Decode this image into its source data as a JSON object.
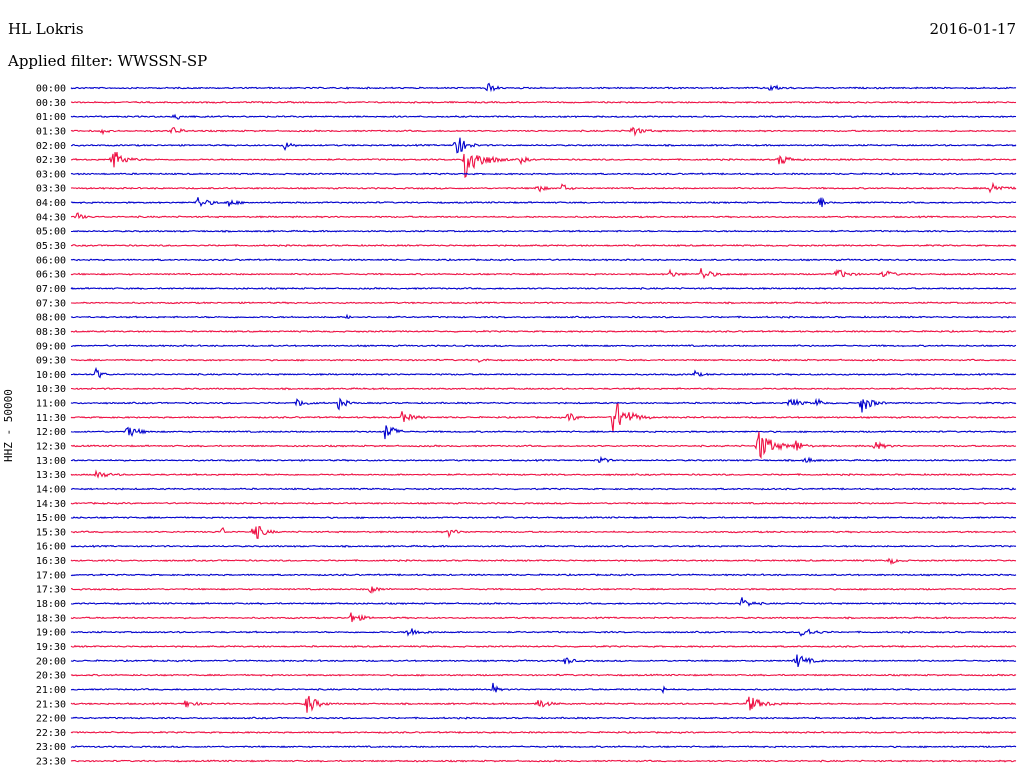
{
  "header": {
    "station": "HL Lokris",
    "date": "2016-01-17",
    "filter": "Applied filter: WWSSN-SP"
  },
  "chart_data": {
    "type": "line",
    "title": "HL Lokris",
    "subtitle": "Applied filter: WWSSN-SP",
    "ylabel": "HHZ - 50000",
    "colors": {
      "even_row": "#0000cc",
      "odd_row": "#ee1144"
    },
    "rows": [
      "00:00",
      "00:30",
      "01:00",
      "01:30",
      "02:00",
      "02:30",
      "03:00",
      "03:30",
      "04:00",
      "04:30",
      "05:00",
      "05:30",
      "06:00",
      "06:30",
      "07:00",
      "07:30",
      "08:00",
      "08:30",
      "09:00",
      "09:30",
      "10:00",
      "10:30",
      "11:00",
      "11:30",
      "12:00",
      "12:30",
      "13:00",
      "13:30",
      "14:00",
      "14:30",
      "15:00",
      "15:30",
      "16:00",
      "16:30",
      "17:00",
      "17:30",
      "18:00",
      "18:30",
      "19:00",
      "19:30",
      "20:00",
      "20:30",
      "21:00",
      "21:30",
      "22:00",
      "22:30",
      "23:00",
      "23:30"
    ],
    "events": [
      {
        "row": 0,
        "minute": 13.2,
        "amp": 1.0,
        "dur": 0.35
      },
      {
        "row": 0,
        "minute": 22.2,
        "amp": 0.5,
        "dur": 0.5
      },
      {
        "row": 2,
        "minute": 3.3,
        "amp": 0.4,
        "dur": 0.6
      },
      {
        "row": 3,
        "minute": 1.0,
        "amp": 0.5,
        "dur": 0.2
      },
      {
        "row": 3,
        "minute": 3.2,
        "amp": 0.6,
        "dur": 0.5
      },
      {
        "row": 3,
        "minute": 17.8,
        "amp": 0.7,
        "dur": 0.6
      },
      {
        "row": 4,
        "minute": 6.8,
        "amp": 0.6,
        "dur": 0.4
      },
      {
        "row": 4,
        "minute": 12.2,
        "amp": 2.0,
        "dur": 0.5
      },
      {
        "row": 5,
        "minute": 1.3,
        "amp": 1.8,
        "dur": 0.6
      },
      {
        "row": 5,
        "minute": 12.5,
        "amp": 3.0,
        "dur": 0.9
      },
      {
        "row": 5,
        "minute": 14.3,
        "amp": 0.6,
        "dur": 0.3
      },
      {
        "row": 5,
        "minute": 22.5,
        "amp": 0.9,
        "dur": 0.5
      },
      {
        "row": 7,
        "minute": 14.8,
        "amp": 0.8,
        "dur": 0.3
      },
      {
        "row": 7,
        "minute": 15.6,
        "amp": 0.7,
        "dur": 0.3
      },
      {
        "row": 7,
        "minute": 29.2,
        "amp": 1.1,
        "dur": 0.5
      },
      {
        "row": 8,
        "minute": 5.0,
        "amp": 0.6,
        "dur": 0.4
      },
      {
        "row": 8,
        "minute": 4.0,
        "amp": 0.9,
        "dur": 0.6
      },
      {
        "row": 8,
        "minute": 23.8,
        "amp": 1.0,
        "dur": 0.2
      },
      {
        "row": 9,
        "minute": 0.2,
        "amp": 0.7,
        "dur": 0.3
      },
      {
        "row": 13,
        "minute": 20.0,
        "amp": 0.9,
        "dur": 0.6
      },
      {
        "row": 13,
        "minute": 19.0,
        "amp": 0.6,
        "dur": 0.4
      },
      {
        "row": 13,
        "minute": 24.3,
        "amp": 0.8,
        "dur": 0.6
      },
      {
        "row": 13,
        "minute": 25.8,
        "amp": 0.6,
        "dur": 0.5
      },
      {
        "row": 16,
        "minute": 8.8,
        "amp": 0.6,
        "dur": 0.1
      },
      {
        "row": 19,
        "minute": 13.0,
        "amp": 0.6,
        "dur": 0.2
      },
      {
        "row": 20,
        "minute": 0.8,
        "amp": 1.0,
        "dur": 0.3
      },
      {
        "row": 20,
        "minute": 19.8,
        "amp": 0.5,
        "dur": 0.3
      },
      {
        "row": 22,
        "minute": 7.2,
        "amp": 0.6,
        "dur": 0.5
      },
      {
        "row": 22,
        "minute": 8.5,
        "amp": 0.9,
        "dur": 0.4
      },
      {
        "row": 22,
        "minute": 22.8,
        "amp": 0.9,
        "dur": 0.5
      },
      {
        "row": 22,
        "minute": 23.7,
        "amp": 1.0,
        "dur": 0.2
      },
      {
        "row": 22,
        "minute": 25.1,
        "amp": 1.6,
        "dur": 0.5
      },
      {
        "row": 23,
        "minute": 10.5,
        "amp": 0.8,
        "dur": 0.6
      },
      {
        "row": 23,
        "minute": 15.8,
        "amp": 0.8,
        "dur": 0.4
      },
      {
        "row": 23,
        "minute": 17.2,
        "amp": 3.0,
        "dur": 0.8
      },
      {
        "row": 24,
        "minute": 1.8,
        "amp": 0.9,
        "dur": 0.6
      },
      {
        "row": 24,
        "minute": 10.0,
        "amp": 1.8,
        "dur": 0.4
      },
      {
        "row": 25,
        "minute": 21.8,
        "amp": 2.6,
        "dur": 0.8
      },
      {
        "row": 25,
        "minute": 23.0,
        "amp": 1.0,
        "dur": 0.4
      },
      {
        "row": 25,
        "minute": 25.5,
        "amp": 0.7,
        "dur": 0.5
      },
      {
        "row": 26,
        "minute": 16.8,
        "amp": 0.7,
        "dur": 0.3
      },
      {
        "row": 26,
        "minute": 23.3,
        "amp": 0.5,
        "dur": 0.4
      },
      {
        "row": 27,
        "minute": 0.8,
        "amp": 0.6,
        "dur": 0.6
      },
      {
        "row": 31,
        "minute": 4.8,
        "amp": 1.0,
        "dur": 0.1
      },
      {
        "row": 31,
        "minute": 12.0,
        "amp": 0.6,
        "dur": 0.4
      },
      {
        "row": 31,
        "minute": 5.8,
        "amp": 1.6,
        "dur": 0.5
      },
      {
        "row": 33,
        "minute": 26.0,
        "amp": 0.5,
        "dur": 0.4
      },
      {
        "row": 35,
        "minute": 9.5,
        "amp": 0.5,
        "dur": 0.5
      },
      {
        "row": 36,
        "minute": 21.3,
        "amp": 0.8,
        "dur": 0.5
      },
      {
        "row": 37,
        "minute": 8.9,
        "amp": 0.9,
        "dur": 0.5
      },
      {
        "row": 38,
        "minute": 10.7,
        "amp": 0.8,
        "dur": 0.6
      },
      {
        "row": 38,
        "minute": 23.2,
        "amp": 0.9,
        "dur": 0.6
      },
      {
        "row": 40,
        "minute": 15.7,
        "amp": 0.6,
        "dur": 0.4
      },
      {
        "row": 40,
        "minute": 23.0,
        "amp": 1.2,
        "dur": 0.6
      },
      {
        "row": 42,
        "minute": 13.4,
        "amp": 1.0,
        "dur": 0.2
      },
      {
        "row": 42,
        "minute": 18.8,
        "amp": 0.7,
        "dur": 0.1
      },
      {
        "row": 43,
        "minute": 3.6,
        "amp": 0.6,
        "dur": 0.6
      },
      {
        "row": 43,
        "minute": 7.5,
        "amp": 1.7,
        "dur": 0.5
      },
      {
        "row": 43,
        "minute": 14.8,
        "amp": 0.9,
        "dur": 0.5
      },
      {
        "row": 43,
        "minute": 21.5,
        "amp": 1.2,
        "dur": 0.8
      }
    ]
  }
}
